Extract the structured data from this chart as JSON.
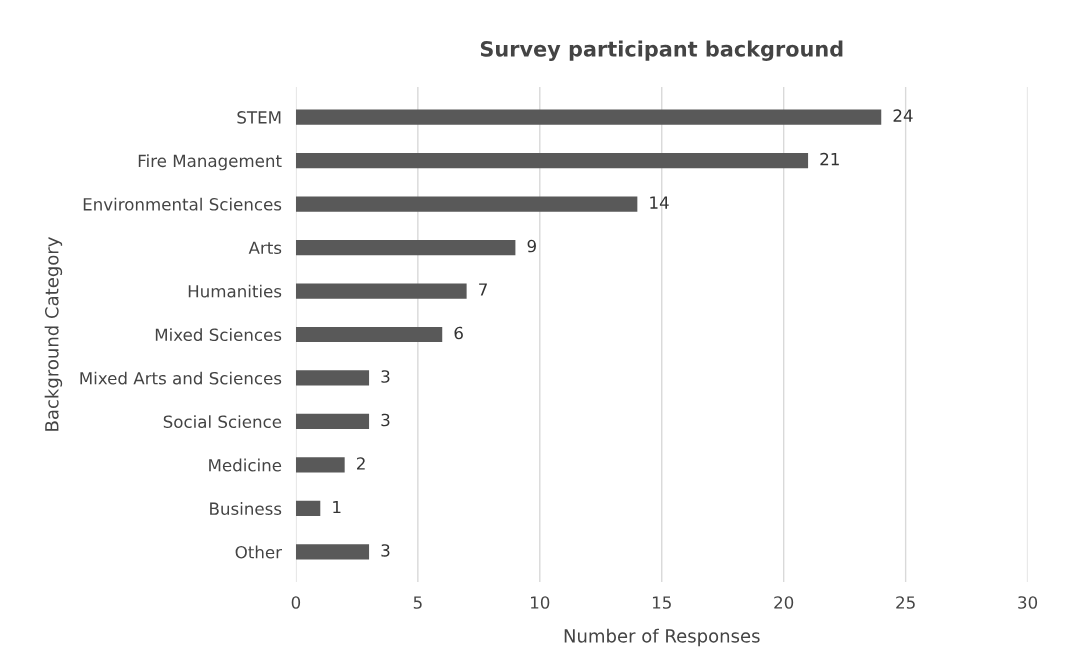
{
  "chart_data": {
    "type": "bar",
    "orientation": "horizontal",
    "title": "Survey participant background",
    "xlabel": "Number of Responses",
    "ylabel": "Background Category",
    "categories": [
      "STEM",
      "Fire Management",
      "Environmental Sciences",
      "Arts",
      "Humanities",
      "Mixed Sciences",
      "Mixed Arts and Sciences",
      "Social Science",
      "Medicine",
      "Business",
      "Other"
    ],
    "values": [
      24,
      21,
      14,
      9,
      7,
      6,
      3,
      3,
      2,
      1,
      3
    ],
    "color": "#595959",
    "xlim": [
      0,
      30
    ],
    "xticks": [
      0,
      5,
      10,
      15,
      20,
      25,
      30
    ],
    "grid": "x",
    "data_labels": true,
    "legend": false
  }
}
